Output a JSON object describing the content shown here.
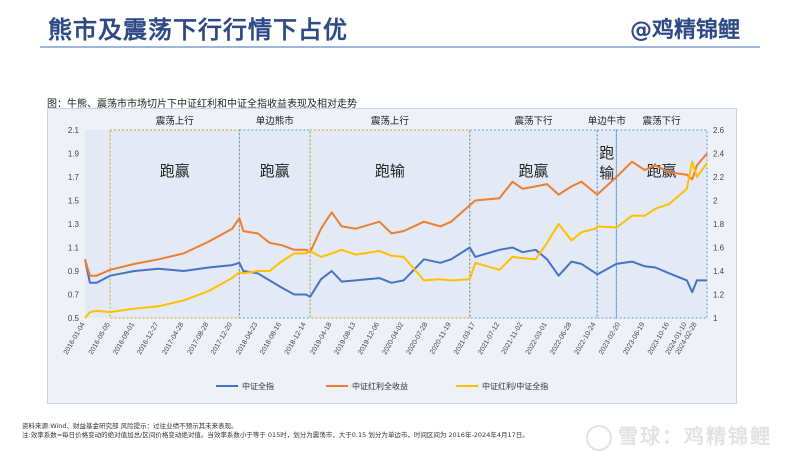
{
  "header": {
    "title": "熊市及震荡下行行情下占优",
    "brand": "@鸡精锦鲤"
  },
  "figure_caption": "图：牛熊、震荡市市场切片下中证红利和中证全指收益表现及相对走势",
  "notes": {
    "line1": "资料来源:Wind、财益基金研究部 风险提示：过往业绩不预示其未来表现。",
    "line2": "注:效率系数=每日价格变动的绝对值加总/区间价格变动绝对值。当效率系数小于等于 015时，划分为震荡市，大于0.15 划分为单边市，时间区间为 2016年-2024年4月17日。"
  },
  "watermark": "雪球：鸡精锦鲤",
  "colors": {
    "title": "#2e4a86",
    "zhongzheng_quanzhi": "#4472c4",
    "hongli": "#ed7d31",
    "ratio": "#ffc000",
    "region_border": "#5b9bd5",
    "region_border_alt": "#c9a227"
  },
  "chart_data": {
    "type": "line",
    "y_left": {
      "ylim": [
        0.5,
        2.1
      ],
      "ticks": [
        "0.5",
        "0.7",
        "0.9",
        "1.1",
        "1.3",
        "1.5",
        "1.7",
        "1.9",
        "2.1"
      ]
    },
    "y_right": {
      "ylim": [
        1,
        2.6
      ],
      "ticks": [
        "1",
        "1.2",
        "1.4",
        "1.6",
        "1.8",
        "2",
        "2.2",
        "2.4",
        "2.6"
      ]
    },
    "x_ticks": [
      "2016-01-04",
      "2016-05-05",
      "2016-09-01",
      "2016-12-27",
      "2017-04-28",
      "2017-08-28",
      "2017-12-20",
      "2018-04-23",
      "2018-08-16",
      "2018-12-14",
      "2019-04-18",
      "2019-08-13",
      "2019-12-06",
      "2020-04-02",
      "2020-07-28",
      "2020-11-19",
      "2021-03-17",
      "2021-07-12",
      "2021-11-02",
      "2022-03-01",
      "2022-06-28",
      "2022-10-24",
      "2023-02-20",
      "2023-06-19",
      "2023-10-16",
      "2024-01-10",
      "2024-02-28"
    ],
    "x_range": [
      "2016-01-04",
      "2024-04-17"
    ],
    "regions": [
      {
        "label": "震荡上行",
        "result": "跑赢",
        "start": "2016-05-05",
        "end": "2018-01-24",
        "border": "alt"
      },
      {
        "label": "单边熊市",
        "result": "跑赢",
        "start": "2018-01-24",
        "end": "2019-01-03",
        "border": "main"
      },
      {
        "label": "震荡上行",
        "result": "跑输",
        "start": "2019-01-03",
        "end": "2021-02-18",
        "border": "alt"
      },
      {
        "label": "震荡下行",
        "result": "跑赢",
        "start": "2021-02-18",
        "end": "2022-10-31",
        "border": "main"
      },
      {
        "label": "单边牛市",
        "result": "跑输",
        "start": "2022-10-31",
        "end": "2023-02-01",
        "border": "main"
      },
      {
        "label": "震荡下行",
        "result": "跑赢",
        "start": "2023-02-01",
        "end": "2024-04-17",
        "border": "main"
      }
    ],
    "series": [
      {
        "name": "中证全指",
        "axis": "left",
        "color": "#4472c4",
        "points": [
          [
            "2016-01-04",
            1.0
          ],
          [
            "2016-01-28",
            0.8
          ],
          [
            "2016-03-01",
            0.8
          ],
          [
            "2016-05-05",
            0.86
          ],
          [
            "2016-09-01",
            0.9
          ],
          [
            "2016-12-27",
            0.92
          ],
          [
            "2017-04-28",
            0.9
          ],
          [
            "2017-08-28",
            0.93
          ],
          [
            "2017-12-20",
            0.95
          ],
          [
            "2018-01-24",
            0.97
          ],
          [
            "2018-02-12",
            0.9
          ],
          [
            "2018-04-23",
            0.88
          ],
          [
            "2018-06-20",
            0.82
          ],
          [
            "2018-08-16",
            0.76
          ],
          [
            "2018-10-18",
            0.7
          ],
          [
            "2018-12-14",
            0.7
          ],
          [
            "2019-01-03",
            0.68
          ],
          [
            "2019-02-25",
            0.83
          ],
          [
            "2019-04-18",
            0.9
          ],
          [
            "2019-06-06",
            0.81
          ],
          [
            "2019-08-13",
            0.82
          ],
          [
            "2019-12-06",
            0.84
          ],
          [
            "2020-02-03",
            0.8
          ],
          [
            "2020-04-02",
            0.82
          ],
          [
            "2020-07-10",
            1.0
          ],
          [
            "2020-09-28",
            0.97
          ],
          [
            "2020-11-19",
            1.0
          ],
          [
            "2021-02-18",
            1.1
          ],
          [
            "2021-03-17",
            1.02
          ],
          [
            "2021-07-12",
            1.08
          ],
          [
            "2021-09-14",
            1.1
          ],
          [
            "2021-11-02",
            1.06
          ],
          [
            "2022-01-04",
            1.08
          ],
          [
            "2022-03-01",
            1.0
          ],
          [
            "2022-04-26",
            0.86
          ],
          [
            "2022-06-28",
            0.98
          ],
          [
            "2022-08-15",
            0.96
          ],
          [
            "2022-10-24",
            0.88
          ],
          [
            "2022-10-31",
            0.87
          ],
          [
            "2023-02-01",
            0.96
          ],
          [
            "2023-04-18",
            0.98
          ],
          [
            "2023-06-19",
            0.94
          ],
          [
            "2023-08-10",
            0.93
          ],
          [
            "2023-10-16",
            0.88
          ],
          [
            "2024-01-10",
            0.82
          ],
          [
            "2024-02-05",
            0.72
          ],
          [
            "2024-02-28",
            0.82
          ],
          [
            "2024-04-17",
            0.82
          ]
        ]
      },
      {
        "name": "中证红利全收益",
        "axis": "left",
        "color": "#ed7d31",
        "points": [
          [
            "2016-01-04",
            1.0
          ],
          [
            "2016-01-28",
            0.86
          ],
          [
            "2016-03-01",
            0.86
          ],
          [
            "2016-05-05",
            0.91
          ],
          [
            "2016-09-01",
            0.96
          ],
          [
            "2016-12-27",
            1.0
          ],
          [
            "2017-04-28",
            1.05
          ],
          [
            "2017-08-28",
            1.15
          ],
          [
            "2017-12-20",
            1.26
          ],
          [
            "2018-01-24",
            1.35
          ],
          [
            "2018-02-12",
            1.24
          ],
          [
            "2018-04-23",
            1.22
          ],
          [
            "2018-06-20",
            1.14
          ],
          [
            "2018-08-16",
            1.12
          ],
          [
            "2018-10-18",
            1.08
          ],
          [
            "2018-12-14",
            1.08
          ],
          [
            "2019-01-03",
            1.06
          ],
          [
            "2019-02-25",
            1.26
          ],
          [
            "2019-04-18",
            1.4
          ],
          [
            "2019-06-06",
            1.28
          ],
          [
            "2019-08-13",
            1.26
          ],
          [
            "2019-12-06",
            1.32
          ],
          [
            "2020-02-03",
            1.22
          ],
          [
            "2020-04-02",
            1.24
          ],
          [
            "2020-07-10",
            1.32
          ],
          [
            "2020-09-28",
            1.28
          ],
          [
            "2020-11-19",
            1.32
          ],
          [
            "2021-02-18",
            1.46
          ],
          [
            "2021-03-17",
            1.5
          ],
          [
            "2021-07-12",
            1.52
          ],
          [
            "2021-09-14",
            1.66
          ],
          [
            "2021-11-02",
            1.6
          ],
          [
            "2022-01-04",
            1.62
          ],
          [
            "2022-03-01",
            1.64
          ],
          [
            "2022-04-26",
            1.55
          ],
          [
            "2022-06-28",
            1.62
          ],
          [
            "2022-08-15",
            1.66
          ],
          [
            "2022-10-24",
            1.56
          ],
          [
            "2022-10-31",
            1.55
          ],
          [
            "2023-02-01",
            1.7
          ],
          [
            "2023-04-18",
            1.83
          ],
          [
            "2023-06-19",
            1.76
          ],
          [
            "2023-08-10",
            1.8
          ],
          [
            "2023-10-16",
            1.74
          ],
          [
            "2024-01-10",
            1.72
          ],
          [
            "2024-02-05",
            1.68
          ],
          [
            "2024-02-28",
            1.8
          ],
          [
            "2024-04-17",
            1.9
          ]
        ]
      },
      {
        "name": "中证红利/中证全指",
        "axis": "right",
        "color": "#ffc000",
        "points": [
          [
            "2016-01-04",
            1.0
          ],
          [
            "2016-01-28",
            1.05
          ],
          [
            "2016-03-01",
            1.06
          ],
          [
            "2016-05-05",
            1.05
          ],
          [
            "2016-09-01",
            1.08
          ],
          [
            "2016-12-27",
            1.1
          ],
          [
            "2017-04-28",
            1.15
          ],
          [
            "2017-08-28",
            1.23
          ],
          [
            "2017-12-20",
            1.34
          ],
          [
            "2018-01-24",
            1.39
          ],
          [
            "2018-02-12",
            1.38
          ],
          [
            "2018-04-23",
            1.4
          ],
          [
            "2018-06-20",
            1.4
          ],
          [
            "2018-08-16",
            1.48
          ],
          [
            "2018-10-18",
            1.55
          ],
          [
            "2018-12-14",
            1.55
          ],
          [
            "2019-01-03",
            1.57
          ],
          [
            "2019-02-25",
            1.52
          ],
          [
            "2019-04-18",
            1.55
          ],
          [
            "2019-06-06",
            1.58
          ],
          [
            "2019-08-13",
            1.54
          ],
          [
            "2019-12-06",
            1.57
          ],
          [
            "2020-02-03",
            1.53
          ],
          [
            "2020-04-02",
            1.52
          ],
          [
            "2020-07-10",
            1.32
          ],
          [
            "2020-09-28",
            1.33
          ],
          [
            "2020-11-19",
            1.32
          ],
          [
            "2021-02-18",
            1.33
          ],
          [
            "2021-03-17",
            1.47
          ],
          [
            "2021-07-12",
            1.41
          ],
          [
            "2021-09-14",
            1.52
          ],
          [
            "2021-11-02",
            1.51
          ],
          [
            "2022-01-04",
            1.5
          ],
          [
            "2022-03-01",
            1.64
          ],
          [
            "2022-04-26",
            1.8
          ],
          [
            "2022-06-28",
            1.66
          ],
          [
            "2022-08-15",
            1.73
          ],
          [
            "2022-10-24",
            1.76
          ],
          [
            "2022-10-31",
            1.78
          ],
          [
            "2023-02-01",
            1.77
          ],
          [
            "2023-04-18",
            1.87
          ],
          [
            "2023-06-19",
            1.87
          ],
          [
            "2023-08-10",
            1.93
          ],
          [
            "2023-10-16",
            1.97
          ],
          [
            "2024-01-10",
            2.1
          ],
          [
            "2024-02-05",
            2.33
          ],
          [
            "2024-02-28",
            2.2
          ],
          [
            "2024-04-17",
            2.32
          ]
        ]
      }
    ],
    "legend": {
      "placement": "bottom"
    },
    "grid": false
  }
}
